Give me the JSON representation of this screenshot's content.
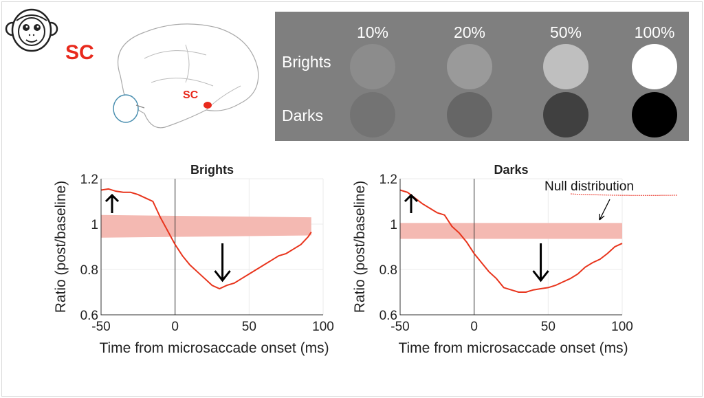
{
  "slide": {
    "region_label": "SC",
    "brain_label": "SC",
    "annotation": "Null distribution"
  },
  "stimuli": {
    "contrasts": [
      "10%",
      "20%",
      "50%",
      "100%"
    ],
    "rows": [
      {
        "label": "Brights",
        "colors": [
          "#8c8c8c",
          "#9a9a9a",
          "#bfbfbf",
          "#ffffff"
        ]
      },
      {
        "label": "Darks",
        "colors": [
          "#737373",
          "#666666",
          "#404040",
          "#000000"
        ]
      }
    ]
  },
  "colors": {
    "curve": "#e8341c",
    "band": "#f4b9b2",
    "panel": "#7f7f7f",
    "accent": "#e8291c"
  },
  "chart_data": [
    {
      "type": "line",
      "title": "Brights",
      "xlabel": "Time from microsaccade onset (ms)",
      "ylabel": "Ratio (post/baseline)",
      "xlim": [
        -50,
        100
      ],
      "ylim": [
        0.6,
        1.2
      ],
      "xticks": [
        "-50",
        "0",
        "50",
        "100"
      ],
      "yticks": [
        "0.6",
        "0.8",
        "1",
        "1.2"
      ],
      "grid": true,
      "series": [
        {
          "x": [
            -50,
            -45,
            -40,
            -35,
            -30,
            -25,
            -20,
            -15,
            -10,
            -5,
            0,
            5,
            10,
            15,
            20,
            25,
            30,
            35,
            40,
            45,
            50,
            55,
            60,
            65,
            70,
            75,
            80,
            85,
            90,
            92
          ],
          "y": [
            1.15,
            1.155,
            1.145,
            1.14,
            1.14,
            1.13,
            1.115,
            1.1,
            1.03,
            0.97,
            0.91,
            0.86,
            0.82,
            0.79,
            0.76,
            0.73,
            0.715,
            0.73,
            0.74,
            0.76,
            0.78,
            0.8,
            0.82,
            0.84,
            0.86,
            0.87,
            0.89,
            0.91,
            0.945,
            0.965
          ]
        }
      ],
      "null_band": {
        "x": [
          -50,
          92
        ],
        "lower": [
          0.94,
          0.95
        ],
        "upper": [
          1.04,
          1.03
        ]
      }
    },
    {
      "type": "line",
      "title": "Darks",
      "xlabel": "Time from microsaccade onset (ms)",
      "ylabel": "Ratio (post/baseline)",
      "xlim": [
        -50,
        100
      ],
      "ylim": [
        0.6,
        1.2
      ],
      "xticks": [
        "-50",
        "0",
        "50",
        "100"
      ],
      "yticks": [
        "0.6",
        "0.8",
        "1",
        "1.2"
      ],
      "grid": true,
      "series": [
        {
          "x": [
            -50,
            -45,
            -40,
            -35,
            -30,
            -25,
            -20,
            -15,
            -10,
            -5,
            0,
            5,
            10,
            15,
            20,
            25,
            30,
            35,
            40,
            45,
            50,
            55,
            60,
            65,
            70,
            75,
            80,
            85,
            90,
            95,
            100
          ],
          "y": [
            1.15,
            1.14,
            1.115,
            1.09,
            1.07,
            1.05,
            1.04,
            0.99,
            0.96,
            0.92,
            0.87,
            0.83,
            0.79,
            0.76,
            0.72,
            0.71,
            0.7,
            0.7,
            0.71,
            0.715,
            0.72,
            0.73,
            0.745,
            0.76,
            0.78,
            0.81,
            0.83,
            0.845,
            0.87,
            0.9,
            0.915
          ]
        }
      ],
      "null_band": {
        "x": [
          -50,
          100
        ],
        "lower": [
          0.935,
          0.935
        ],
        "upper": [
          1.005,
          1.005
        ]
      }
    }
  ]
}
